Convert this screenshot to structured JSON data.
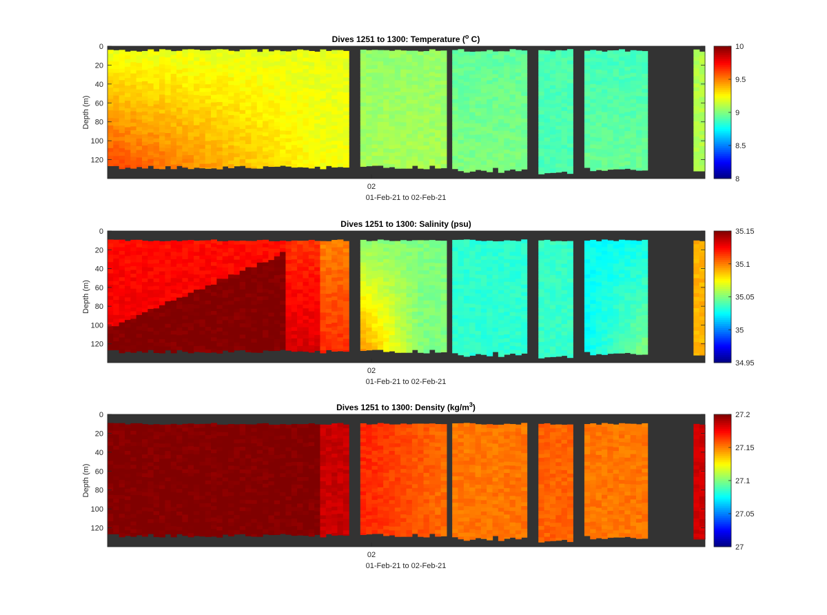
{
  "chart_data": [
    {
      "type": "heatmap",
      "title": "Dives 1251 to 1300: Temperature (",
      "title_super": "o",
      "title_tail": " C)",
      "ylabel": "Depth (m)",
      "xlabel": "01-Feb-21 to 02-Feb-21",
      "x_tick_labels": [
        "02"
      ],
      "ylim": [
        0,
        140
      ],
      "y_direction": "reversed",
      "y_ticks": [
        0,
        20,
        40,
        60,
        80,
        100,
        120
      ],
      "colorbar": {
        "min": 8,
        "max": 10,
        "colormap": "jet",
        "tick_values": [
          8,
          8.5,
          9,
          9.5,
          10
        ],
        "tick_labels": [
          "8",
          "8.5",
          "9",
          "9.5",
          "10"
        ]
      },
      "no_data_color": "#333333"
    },
    {
      "type": "heatmap",
      "title": "Dives 1251 to 1300: Salinity (psu)",
      "ylabel": "Depth (m)",
      "xlabel": "01-Feb-21 to 02-Feb-21",
      "x_tick_labels": [
        "02"
      ],
      "ylim": [
        0,
        140
      ],
      "y_direction": "reversed",
      "y_ticks": [
        0,
        20,
        40,
        60,
        80,
        100,
        120
      ],
      "colorbar": {
        "min": 34.95,
        "max": 35.15,
        "colormap": "jet",
        "tick_values": [
          34.95,
          35,
          35.05,
          35.1,
          35.15
        ],
        "tick_labels": [
          "34.95",
          "35",
          "35.05",
          "35.1",
          "35.15"
        ]
      },
      "no_data_color": "#333333"
    },
    {
      "type": "heatmap",
      "title": "Dives 1251 to 1300: Density (kg/m",
      "title_super": "3",
      "title_tail": ")",
      "ylabel": "Depth (m)",
      "xlabel": "01-Feb-21 to 02-Feb-21",
      "x_tick_labels": [
        "02"
      ],
      "ylim": [
        0,
        140
      ],
      "y_direction": "reversed",
      "y_ticks": [
        0,
        20,
        40,
        60,
        80,
        100,
        120
      ],
      "colorbar": {
        "min": 27,
        "max": 27.2,
        "colormap": "jet",
        "tick_values": [
          27,
          27.05,
          27.1,
          27.15,
          27.2
        ],
        "tick_labels": [
          "27",
          "27.05",
          "27.1",
          "27.15",
          "27.2"
        ]
      },
      "no_data_color": "#333333"
    }
  ]
}
